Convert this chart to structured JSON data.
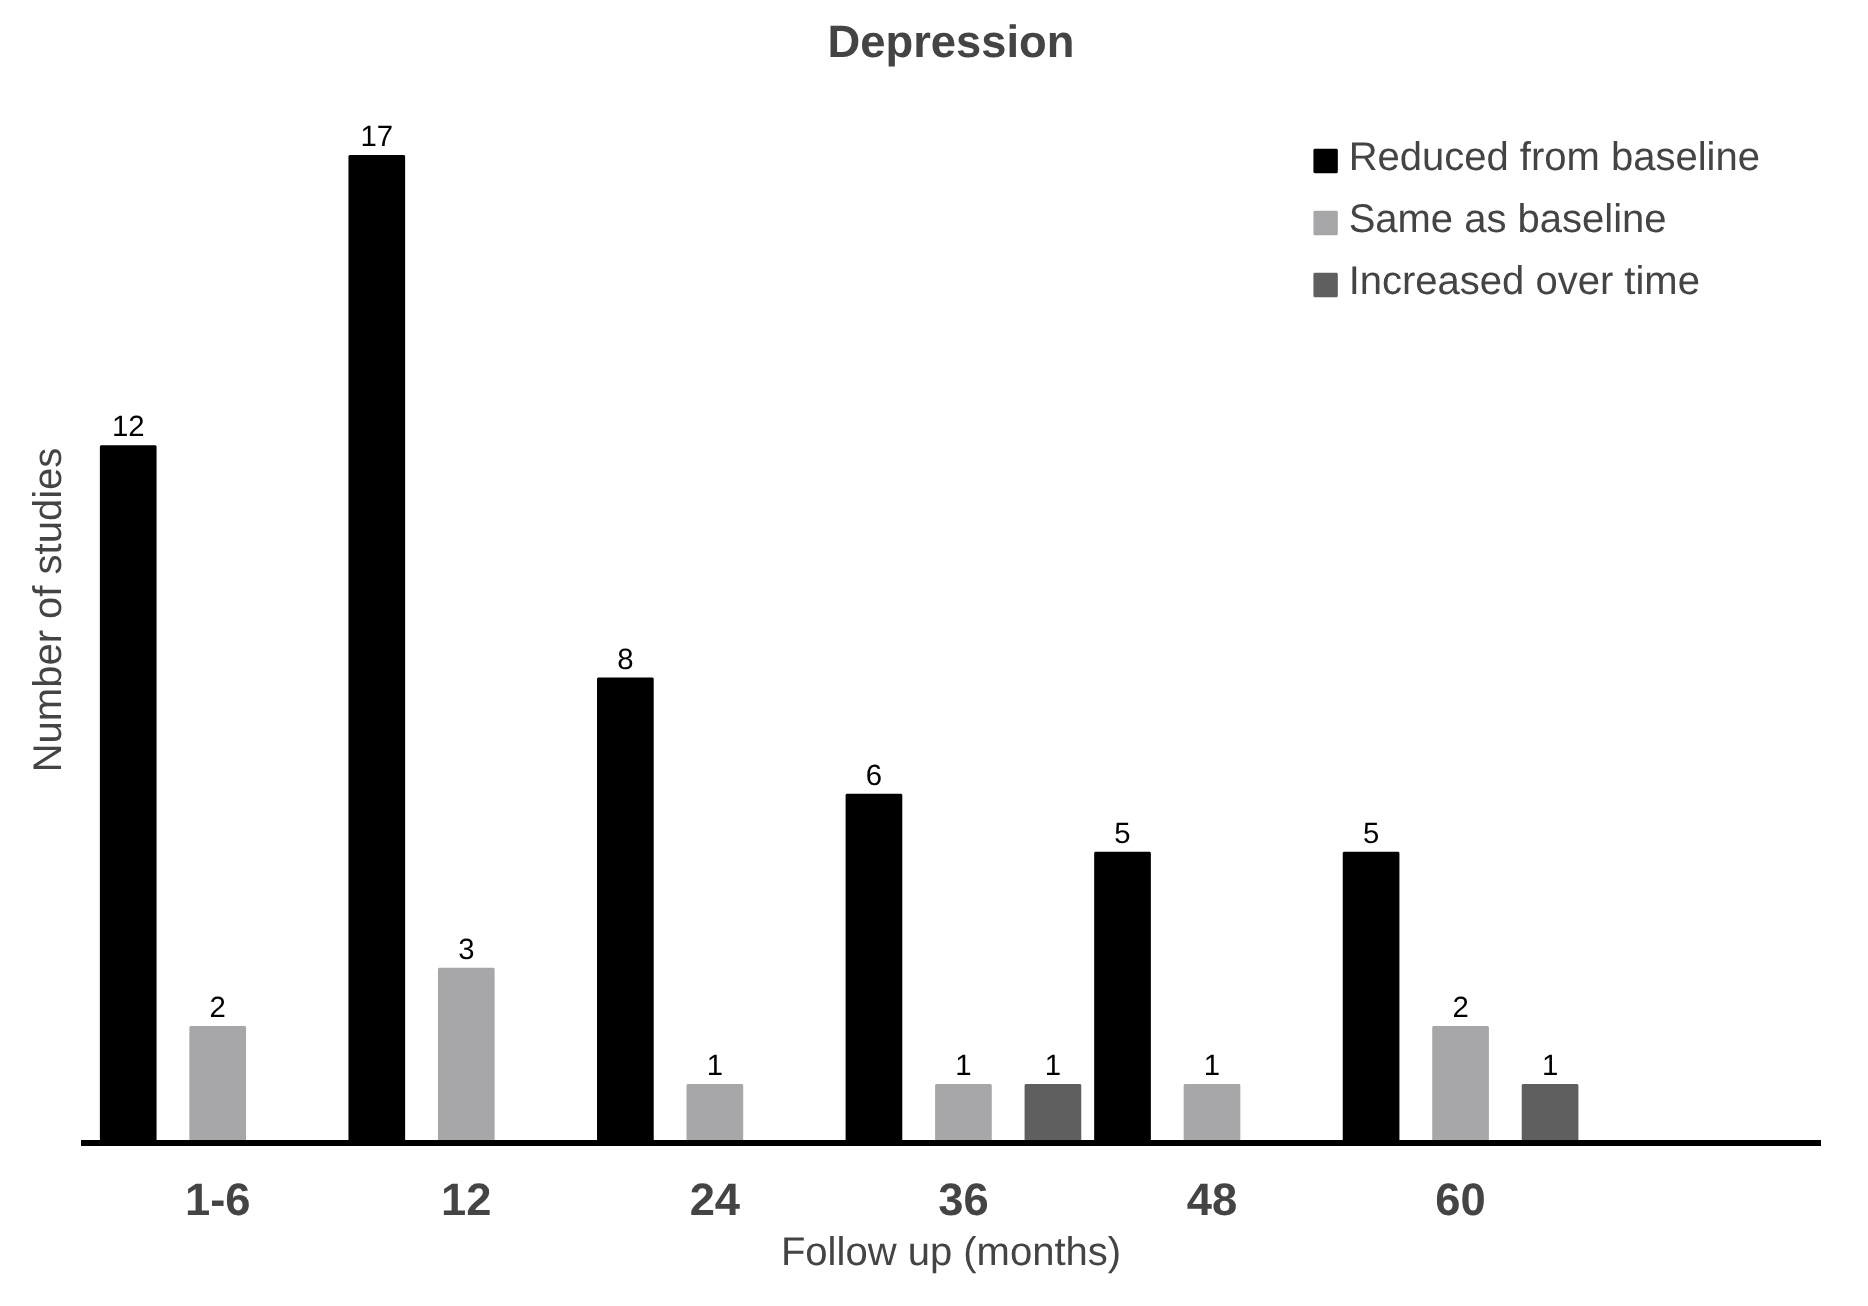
{
  "chart_data": {
    "type": "bar",
    "title": "Depression",
    "xlabel": "Follow up (months)",
    "ylabel": "Number of studies",
    "categories": [
      "1-6",
      "12",
      "24",
      "36",
      "48",
      "60"
    ],
    "series": [
      {
        "name": "Reduced from baseline",
        "color": "#000000",
        "values": [
          12,
          17,
          8,
          6,
          5,
          5
        ]
      },
      {
        "name": "Same as baseline",
        "color": "#a7a7a9",
        "values": [
          2,
          3,
          1,
          1,
          1,
          2
        ]
      },
      {
        "name": "Increased over time",
        "color": "#5f5f5f",
        "values": [
          null,
          null,
          null,
          1,
          null,
          1
        ]
      }
    ],
    "data_labels": true,
    "legend": "top right",
    "grid": false
  }
}
